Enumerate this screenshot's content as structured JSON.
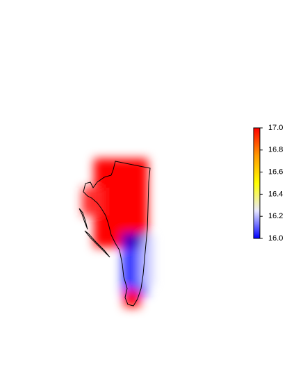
{
  "legend": {
    "type": "colorbar",
    "lim": [
      16,
      17
    ],
    "ticks": [
      {
        "value": 16,
        "label": "16.0"
      },
      {
        "value": 16.2,
        "label": "16.2"
      },
      {
        "value": 16.4,
        "label": "16.4"
      },
      {
        "value": 16.6,
        "label": "16.6"
      },
      {
        "value": 16.8,
        "label": "16.8"
      },
      {
        "value": 17,
        "label": "17.0"
      }
    ],
    "colors": [
      "#0000ff",
      "#e8e8ff",
      "#ffff00",
      "#ff9900",
      "#ff0000"
    ]
  }
}
